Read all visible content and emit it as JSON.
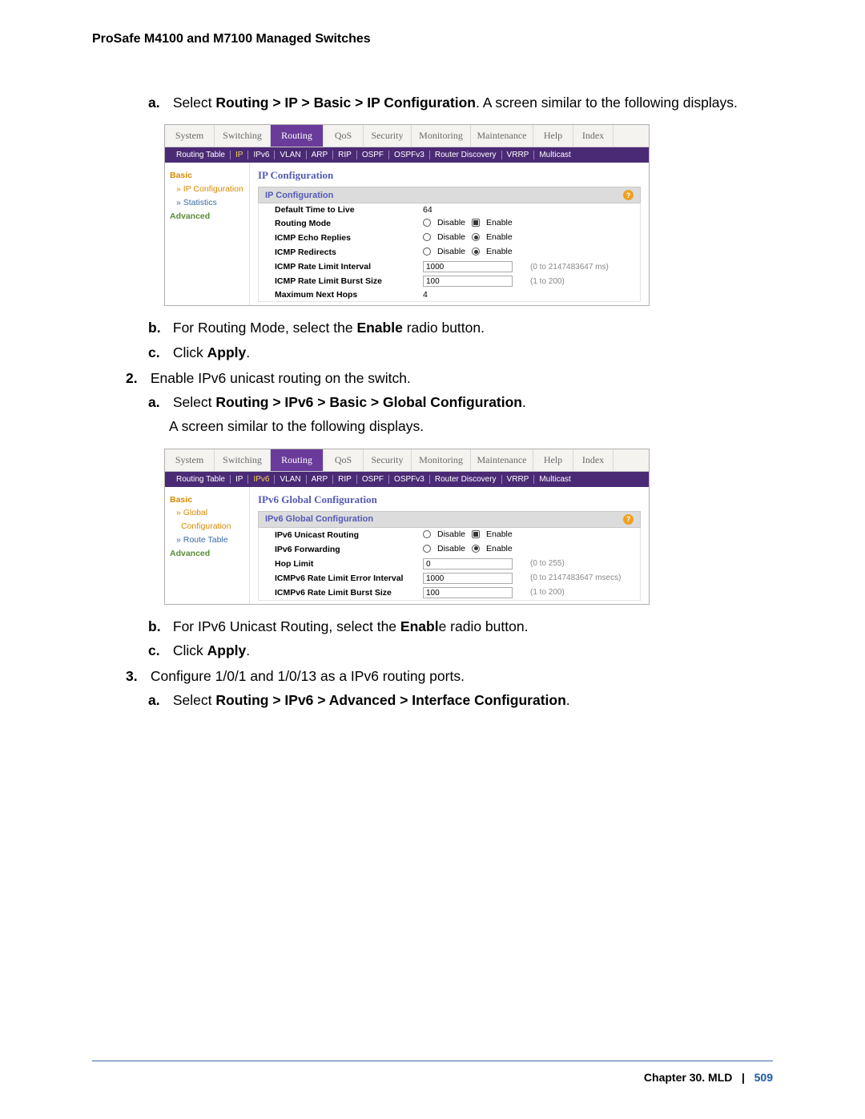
{
  "header": {
    "title": "ProSafe M4100 and M7100 Managed Switches"
  },
  "footer": {
    "chapter": "Chapter 30.  MLD",
    "sep": "|",
    "page": "509"
  },
  "colors": {
    "tab_active_bg": "#6a3b9a",
    "subtab_bg": "#4b2a75",
    "accent_orange": "#d88a00",
    "accent_green": "#5a8c36",
    "accent_blue": "#555ab8",
    "link_blue": "#3a6aa8"
  },
  "steps": {
    "s1a_pre": "Select ",
    "s1a_b": "Routing > IP > Basic > IP Configuration",
    "s1a_post": ". A screen similar to the following displays.",
    "s1b_pre": "For Routing Mode, select the ",
    "s1b_b": "Enable",
    "s1b_post": " radio button.",
    "s1c_pre": "Click ",
    "s1c_b": "Apply",
    "s1c_post": ".",
    "s2": "Enable IPv6 unicast routing on the switch.",
    "s2a_pre": "Select ",
    "s2a_b": "Routing > IPv6 > Basic > Global Configuration",
    "s2a_post": ".",
    "s2a_after": "A screen similar to the following displays.",
    "s2b_pre": "For IPv6 Unicast Routing, select the ",
    "s2b_b": "Enabl",
    "s2b_post": "e radio button.",
    "s2c_pre": "Click ",
    "s2c_b": "Apply",
    "s2c_post": ".",
    "s3": "Configure 1/0/1 and 1/0/13 as a IPv6 routing ports.",
    "s3a_pre": "Select ",
    "s3a_b": "Routing > IPv6 > Advanced > Interface Configuration",
    "s3a_post": "."
  },
  "shot1": {
    "main_tabs": [
      "System",
      "Switching",
      "Routing",
      "QoS",
      "Security",
      "Monitoring",
      "Maintenance",
      "Help",
      "Index"
    ],
    "main_tab_widths": [
      62,
      70,
      66,
      50,
      60,
      74,
      78,
      50,
      50
    ],
    "main_active": 2,
    "sub_tabs": [
      "Routing Table",
      "IP",
      "IPv6",
      "VLAN",
      "ARP",
      "RIP",
      "OSPF",
      "OSPFv3",
      "Router Discovery",
      "VRRP",
      "Multicast"
    ],
    "sub_hl": 1,
    "sidebar": {
      "basic": "Basic",
      "items": [
        "» IP Configuration",
        "» Statistics"
      ],
      "sel_idx": 0,
      "advanced": "Advanced"
    },
    "cfg_title": "IP Configuration",
    "cfg_bar": "IP Configuration",
    "rows": [
      {
        "lbl": "Default Time to Live",
        "type": "text",
        "val": "64"
      },
      {
        "lbl": "Routing Mode",
        "type": "radio_box",
        "disable": "Disable",
        "enable": "Enable",
        "sel": "enable"
      },
      {
        "lbl": "ICMP Echo Replies",
        "type": "radio",
        "disable": "Disable",
        "enable": "Enable",
        "sel": "enable"
      },
      {
        "lbl": "ICMP Redirects",
        "type": "radio",
        "disable": "Disable",
        "enable": "Enable",
        "sel": "enable"
      },
      {
        "lbl": "ICMP Rate Limit Interval",
        "type": "input",
        "val": "1000",
        "hint": "(0 to 2147483647 ms)"
      },
      {
        "lbl": "ICMP Rate Limit Burst Size",
        "type": "input",
        "val": "100",
        "hint": "(1 to 200)"
      },
      {
        "lbl": "Maximum Next Hops",
        "type": "text",
        "val": "4"
      }
    ]
  },
  "shot2": {
    "main_tabs": [
      "System",
      "Switching",
      "Routing",
      "QoS",
      "Security",
      "Monitoring",
      "Maintenance",
      "Help",
      "Index"
    ],
    "main_tab_widths": [
      62,
      70,
      66,
      50,
      60,
      74,
      78,
      50,
      50
    ],
    "main_active": 2,
    "sub_tabs": [
      "Routing Table",
      "IP",
      "IPv6",
      "VLAN",
      "ARP",
      "RIP",
      "OSPF",
      "OSPFv3",
      "Router Discovery",
      "VRRP",
      "Multicast"
    ],
    "sub_hl": 2,
    "sidebar": {
      "basic": "Basic",
      "items": [
        "» Global Configuration",
        "» Route Table"
      ],
      "sel_idx": 0,
      "advanced": "Advanced",
      "multi_line_first": "» Global",
      "multi_line_second": "Configuration"
    },
    "cfg_title": "IPv6 Global Configuration",
    "cfg_bar": "IPv6 Global Configuration",
    "rows": [
      {
        "lbl": "IPv6 Unicast Routing",
        "type": "radio_box",
        "disable": "Disable",
        "enable": "Enable",
        "sel": "enable"
      },
      {
        "lbl": "IPv6 Forwarding",
        "type": "radio",
        "disable": "Disable",
        "enable": "Enable",
        "sel": "enable"
      },
      {
        "lbl": "Hop Limit",
        "type": "input",
        "val": "0",
        "hint": "(0 to 255)"
      },
      {
        "lbl": "ICMPv6 Rate Limit Error Interval",
        "type": "input",
        "val": "1000",
        "hint": "(0 to 2147483647 msecs)"
      },
      {
        "lbl": "ICMPv6 Rate Limit Burst Size",
        "type": "input",
        "val": "100",
        "hint": "(1 to 200)"
      }
    ]
  }
}
